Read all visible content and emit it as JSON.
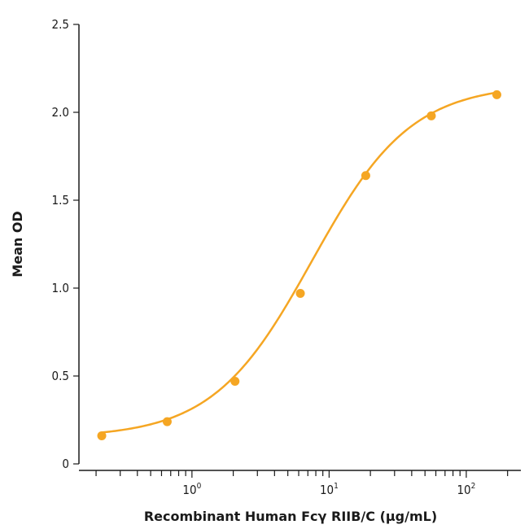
{
  "chart_data": {
    "type": "scatter",
    "xlabel": "Recombinant Human Fcγ RIIB/C (µg/mL)",
    "ylabel": "Mean OD",
    "xscale": "log",
    "xlim": [
      0.15,
      250
    ],
    "ylim": [
      0,
      2.5
    ],
    "yticks": [
      {
        "value": 0,
        "label": "0"
      },
      {
        "value": 0.5,
        "label": "0.5"
      },
      {
        "value": 1.0,
        "label": "1.0"
      },
      {
        "value": 1.5,
        "label": "1.5"
      },
      {
        "value": 2.0,
        "label": "2.0"
      },
      {
        "value": 2.5,
        "label": "2.5"
      }
    ],
    "xticks": [
      {
        "value": 1,
        "base": "10",
        "exp": "0"
      },
      {
        "value": 10,
        "base": "10",
        "exp": "1"
      },
      {
        "value": 100,
        "base": "10",
        "exp": "2"
      }
    ],
    "series": [
      {
        "x": [
          0.22,
          0.66,
          2.06,
          6.17,
          18.5,
          55.6,
          167
        ],
        "y": [
          0.16,
          0.24,
          0.47,
          0.97,
          1.64,
          1.98,
          2.1
        ]
      }
    ],
    "fit": {
      "bottom": 0.15,
      "top": 2.16,
      "ec50": 7.5,
      "hill": 1.2
    },
    "grid": false,
    "legend": "none",
    "color": "#f5a623"
  }
}
